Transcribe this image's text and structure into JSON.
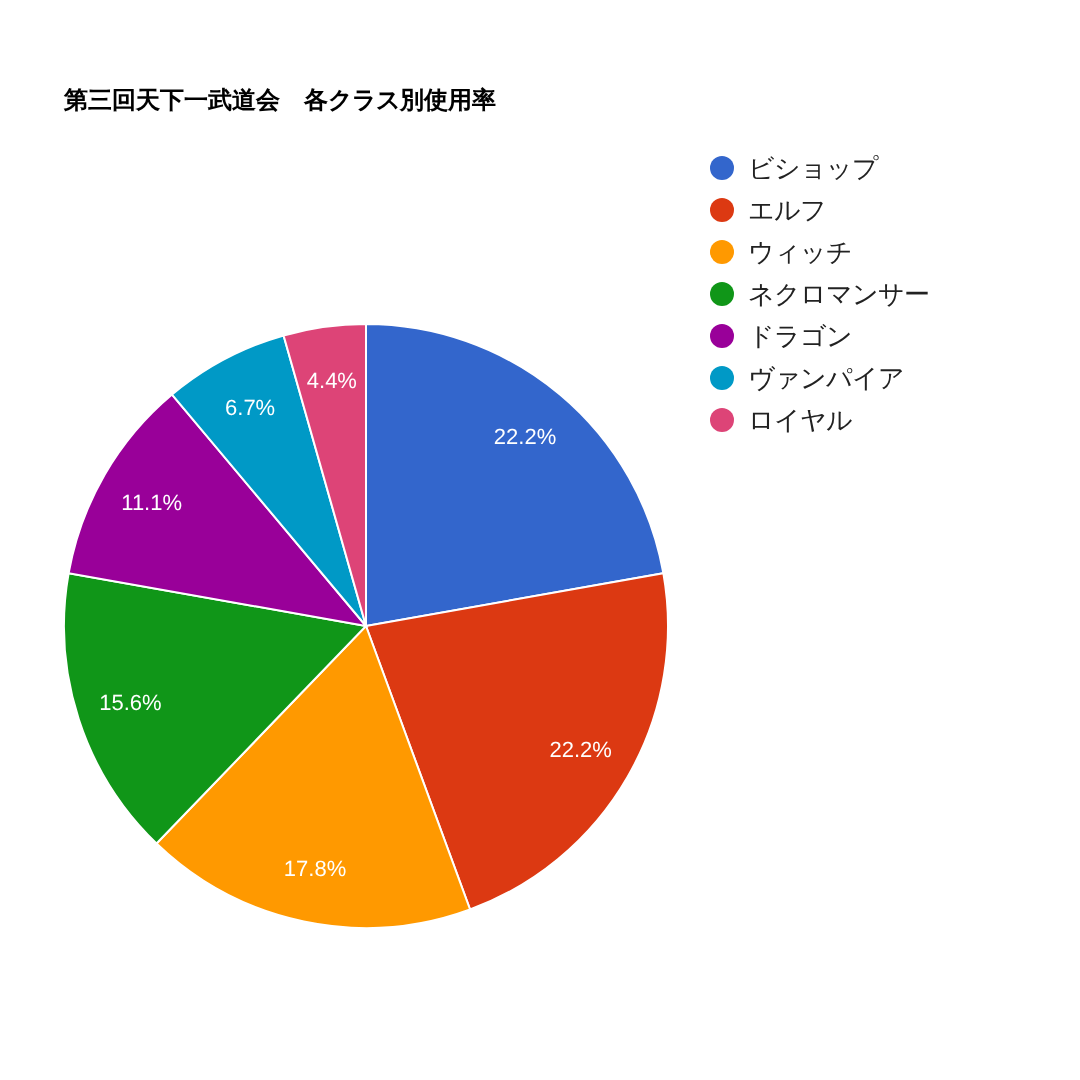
{
  "chart_data": {
    "type": "pie",
    "title": "第三回天下一武道会　各クラス別使用率",
    "categories": [
      "ビショップ",
      "エルフ",
      "ウィッチ",
      "ネクロマンサー",
      "ドラゴン",
      "ヴァンパイア",
      "ロイヤル"
    ],
    "values": [
      22.2,
      22.2,
      17.8,
      15.6,
      11.1,
      6.7,
      4.4
    ],
    "colors": [
      "#3366cc",
      "#dc3912",
      "#ff9900",
      "#109618",
      "#990099",
      "#0099c6",
      "#dd4477"
    ],
    "value_labels": [
      "22.2%",
      "22.2%",
      "17.8%",
      "15.6%",
      "11.1%",
      "6.7%",
      "4.4%"
    ],
    "legend": "top right"
  }
}
